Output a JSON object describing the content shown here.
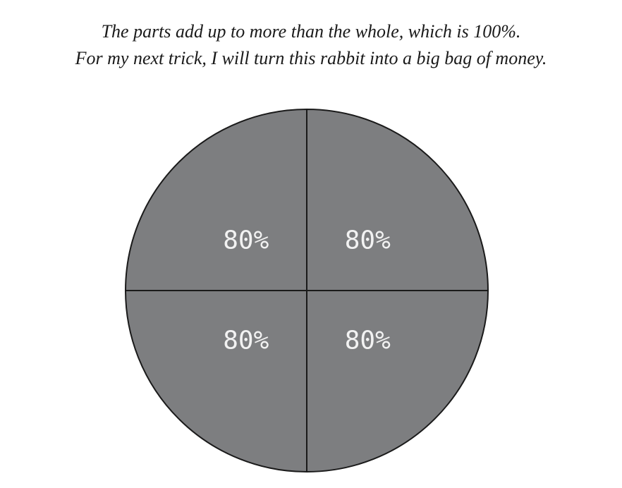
{
  "caption": {
    "line1": "The parts add up to more than the whole, which is 100%.",
    "line2": "For my next trick, I will turn this rabbit into a big bag of money."
  },
  "colors": {
    "slice_fill": "#7d7e80",
    "outline": "#1a1a1a",
    "label_text": "#f2f2f2"
  },
  "chart_data": {
    "type": "pie",
    "title": "",
    "slices": [
      {
        "label": "80%",
        "value": 80
      },
      {
        "label": "80%",
        "value": 80
      },
      {
        "label": "80%",
        "value": 80
      },
      {
        "label": "80%",
        "value": 80
      }
    ],
    "legend": "none"
  }
}
